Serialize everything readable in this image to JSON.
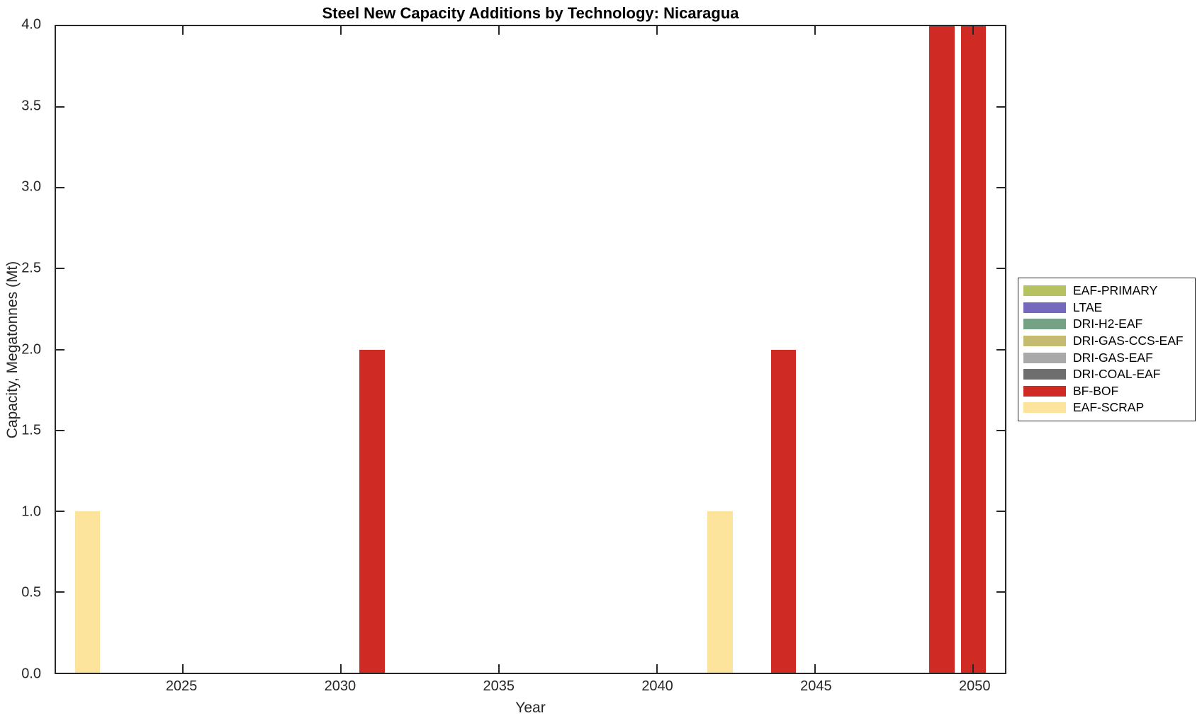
{
  "chart_data": {
    "type": "bar",
    "title": "Steel New Capacity Additions by Technology: Nicaragua",
    "xlabel": "Year",
    "ylabel": "Capacity, Megatonnes (Mt)",
    "xlim": [
      2021,
      2051
    ],
    "ylim": [
      0,
      4
    ],
    "xticks": [
      2025,
      2030,
      2035,
      2040,
      2045,
      2050
    ],
    "ytick_labels": [
      "0.0",
      "0.5",
      "1.0",
      "1.5",
      "2.0",
      "2.5",
      "3.0",
      "3.5",
      "4.0"
    ],
    "grid": false,
    "box": true,
    "tick_direction": "in",
    "bar_width_years": 0.8,
    "axis_color": "#262626",
    "legend_position": "outside-right",
    "series": [
      {
        "name": "EAF-PRIMARY",
        "color": "#b6c25f",
        "bars": []
      },
      {
        "name": "LTAE",
        "color": "#7569bd",
        "bars": []
      },
      {
        "name": "DRI-H2-EAF",
        "color": "#75a184",
        "bars": []
      },
      {
        "name": "DRI-GAS-CCS-EAF",
        "color": "#c4bb70",
        "bars": []
      },
      {
        "name": "DRI-GAS-EAF",
        "color": "#a9a9a9",
        "bars": []
      },
      {
        "name": "DRI-COAL-EAF",
        "color": "#6e6e6e",
        "bars": []
      },
      {
        "name": "BF-BOF",
        "color": "#cf2a23",
        "bars": [
          {
            "x": 2031,
            "y": 2.0
          },
          {
            "x": 2044,
            "y": 2.0
          },
          {
            "x": 2049,
            "y": 4.0
          },
          {
            "x": 2050,
            "y": 4.0
          }
        ]
      },
      {
        "name": "EAF-SCRAP",
        "color": "#fde49c",
        "bars": [
          {
            "x": 2022,
            "y": 1.0
          },
          {
            "x": 2042,
            "y": 1.0
          }
        ]
      }
    ]
  }
}
